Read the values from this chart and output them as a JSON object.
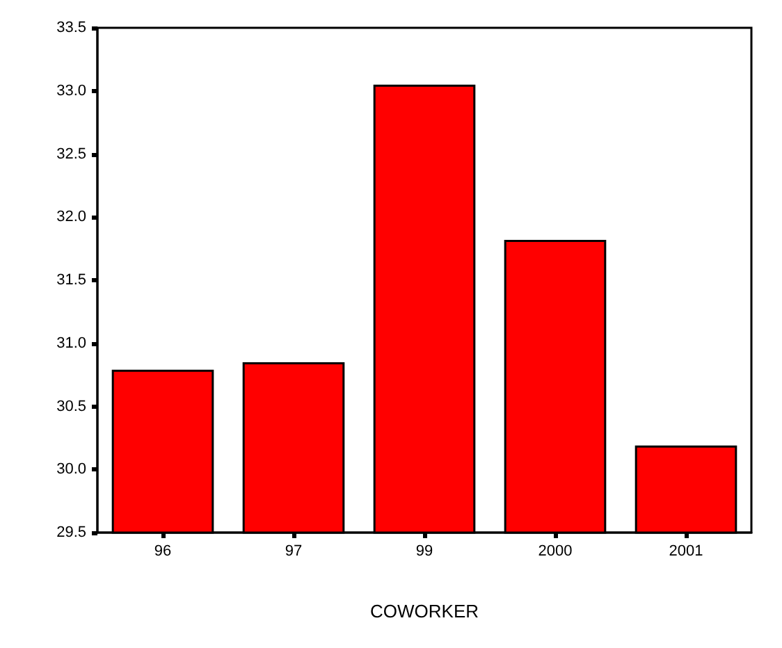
{
  "chart_data": {
    "type": "bar",
    "xlabel": "COWORKER",
    "categories": [
      "96",
      "97",
      "99",
      "2000",
      "2001"
    ],
    "values": [
      30.79,
      30.85,
      33.05,
      31.82,
      30.19
    ],
    "color": "#ff0000",
    "ylim": [
      29.5,
      33.5
    ],
    "yticks": [
      {
        "value": 29.5,
        "label": "29.5"
      },
      {
        "value": 30.0,
        "label": "30.0"
      },
      {
        "value": 30.5,
        "label": "30.5"
      },
      {
        "value": 31.0,
        "label": "31.0"
      },
      {
        "value": 31.5,
        "label": "31.5"
      },
      {
        "value": 32.0,
        "label": "32.0"
      },
      {
        "value": 32.5,
        "label": "32.5"
      },
      {
        "value": 33.0,
        "label": "33.0"
      },
      {
        "value": 33.5,
        "label": "33.5"
      }
    ],
    "grid": false
  }
}
